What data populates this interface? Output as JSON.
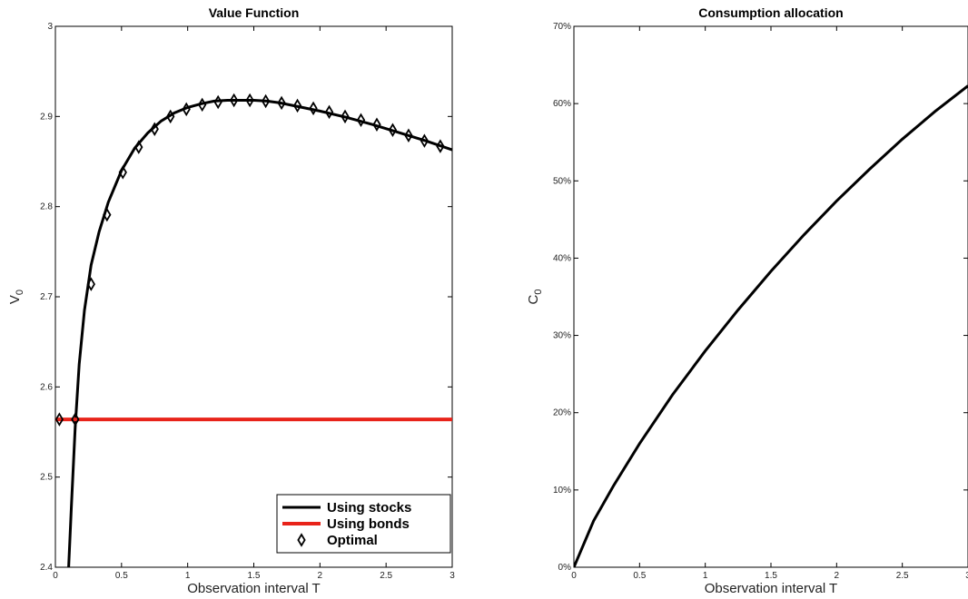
{
  "chart_data": [
    {
      "type": "line",
      "title": "Value Function",
      "xlabel": "Observation interval T",
      "ylabel": "V",
      "ylabel_sub": "0",
      "xlim": [
        0,
        3
      ],
      "ylim": [
        2.4,
        3.0
      ],
      "xticks": [
        "0",
        "0.5",
        "1",
        "1.5",
        "2",
        "2.5",
        "3"
      ],
      "yticks": [
        "2.4",
        "2.5",
        "2.6",
        "2.7",
        "2.8",
        "2.9",
        "3"
      ],
      "grid": false,
      "legend_position": "bottom-right",
      "series": [
        {
          "name": "Using stocks",
          "color": "#000000",
          "style": "solid",
          "x": [
            0.1,
            0.12,
            0.15,
            0.18,
            0.22,
            0.27,
            0.33,
            0.4,
            0.5,
            0.6,
            0.7,
            0.8,
            0.9,
            1.0,
            1.1,
            1.2,
            1.3,
            1.4,
            1.5,
            1.6,
            1.7,
            1.8,
            1.9,
            2.0,
            2.2,
            2.4,
            2.6,
            2.8,
            3.0
          ],
          "values": [
            2.4,
            2.465,
            2.555,
            2.625,
            2.685,
            2.735,
            2.772,
            2.805,
            2.84,
            2.865,
            2.882,
            2.895,
            2.904,
            2.91,
            2.914,
            2.917,
            2.918,
            2.918,
            2.918,
            2.917,
            2.915,
            2.912,
            2.909,
            2.906,
            2.899,
            2.891,
            2.882,
            2.873,
            2.863
          ]
        },
        {
          "name": "Using bonds",
          "color": "#e8231a",
          "style": "solid",
          "x": [
            0,
            3
          ],
          "values": [
            2.564,
            2.564
          ]
        },
        {
          "name": "Optimal",
          "color": "#000000",
          "style": "markers-diamond",
          "x": [
            0.03,
            0.15,
            0.27,
            0.39,
            0.51,
            0.63,
            0.75,
            0.87,
            0.99,
            1.11,
            1.23,
            1.35,
            1.47,
            1.59,
            1.71,
            1.83,
            1.95,
            2.07,
            2.19,
            2.31,
            2.43,
            2.55,
            2.67,
            2.79,
            2.91
          ],
          "values": [
            2.564,
            2.564,
            2.714,
            2.791,
            2.838,
            2.866,
            2.886,
            2.9,
            2.908,
            2.913,
            2.916,
            2.918,
            2.918,
            2.917,
            2.915,
            2.912,
            2.909,
            2.905,
            2.9,
            2.896,
            2.891,
            2.885,
            2.879,
            2.873,
            2.867
          ]
        }
      ]
    },
    {
      "type": "line",
      "title": "Consumption allocation",
      "xlabel": "Observation interval T",
      "ylabel": "C",
      "ylabel_sub": "0",
      "xlim": [
        0,
        3
      ],
      "ylim": [
        0,
        70
      ],
      "xticks": [
        "0",
        "0.5",
        "1",
        "1.5",
        "2",
        "2.5",
        "3"
      ],
      "yticks": [
        "0%",
        "10%",
        "20%",
        "30%",
        "40%",
        "50%",
        "60%",
        "70%"
      ],
      "grid": false,
      "series": [
        {
          "color": "#000000",
          "style": "solid",
          "x": [
            0,
            0.15,
            0.3,
            0.5,
            0.75,
            1.0,
            1.25,
            1.5,
            1.75,
            2.0,
            2.25,
            2.5,
            2.75,
            3.0
          ],
          "values": [
            0,
            6.0,
            10.5,
            16.0,
            22.3,
            28.0,
            33.3,
            38.3,
            43.0,
            47.4,
            51.5,
            55.4,
            59.0,
            62.3
          ]
        }
      ]
    }
  ]
}
